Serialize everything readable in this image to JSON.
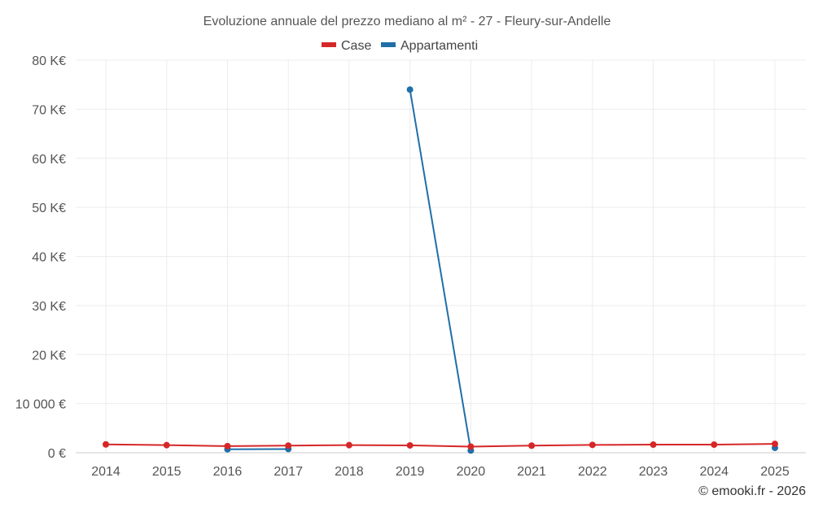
{
  "chart_data": {
    "type": "line",
    "title": "Evoluzione annuale del prezzo mediano al m² - 27 - Fleury-sur-Andelle",
    "x": [
      "2014",
      "2015",
      "2016",
      "2017",
      "2018",
      "2019",
      "2020",
      "2021",
      "2022",
      "2023",
      "2024",
      "2025"
    ],
    "ylim": [
      0,
      80000
    ],
    "y_ticks": [
      0,
      10000,
      20000,
      30000,
      40000,
      50000,
      60000,
      70000,
      80000
    ],
    "y_tick_labels": [
      "0 €",
      "10 000 €",
      "20 K€",
      "30 K€",
      "40 K€",
      "50 K€",
      "60 K€",
      "70 K€",
      "80 K€"
    ],
    "grid": true,
    "legend_position": "top-center",
    "series": [
      {
        "name": "Case",
        "color": "#d62728",
        "values": [
          1700,
          1550,
          1350,
          1450,
          1550,
          1500,
          1250,
          1450,
          1600,
          1650,
          1650,
          1800
        ]
      },
      {
        "name": "Appartamenti",
        "color": "#1f6fa8",
        "values": [
          null,
          null,
          700,
          750,
          null,
          74000,
          450,
          null,
          null,
          null,
          null,
          1000
        ]
      }
    ]
  },
  "credit": "© emooki.fr - 2026"
}
